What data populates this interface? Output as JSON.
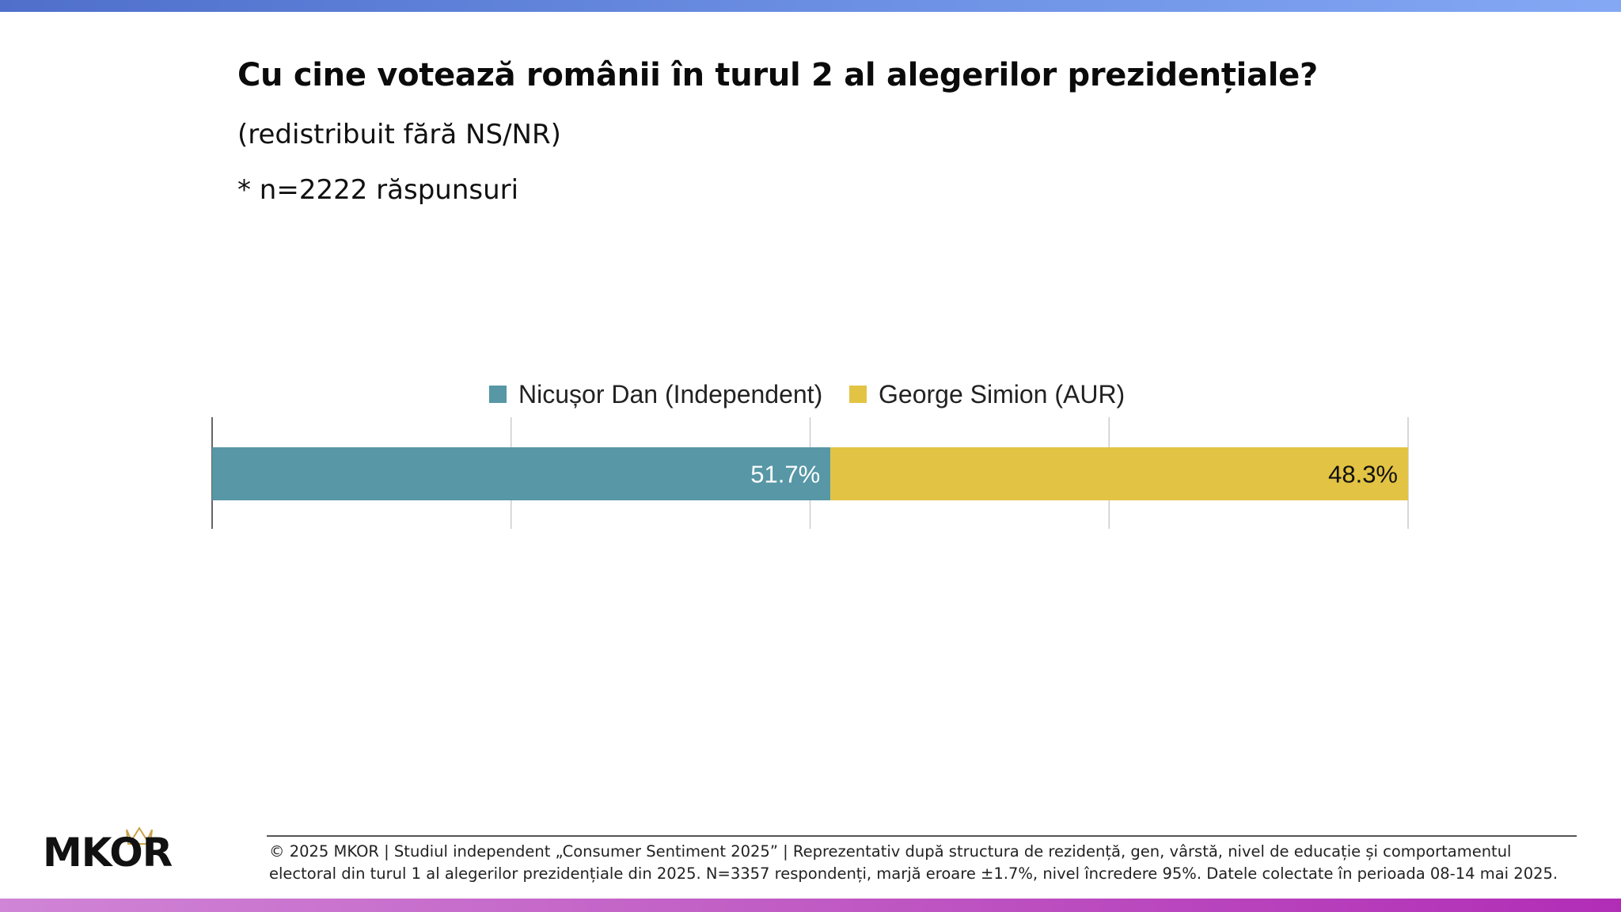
{
  "header": {
    "title": "Cu cine votează românii în turul 2 al alegerilor prezidențiale?",
    "subtitle": "(redistribuit fără NS/NR)",
    "note": "* n=2222 răspunsuri"
  },
  "chart_data": {
    "type": "bar",
    "orientation": "horizontal",
    "stacked": true,
    "categories": [
      ""
    ],
    "series": [
      {
        "name": "Nicușor Dan (Independent)",
        "values": [
          51.7
        ],
        "label": "51.7%",
        "color": "#5797a6",
        "label_color": "#ffffff"
      },
      {
        "name": "George Simion (AUR)",
        "values": [
          48.3
        ],
        "label": "48.3%",
        "color": "#e3c343",
        "label_color": "#111111"
      }
    ],
    "xlim": [
      0,
      100
    ],
    "grid": true,
    "legend": "top-center",
    "title": "",
    "xlabel": "",
    "ylabel": ""
  },
  "logo": {
    "text": "MKOR",
    "color": "#111111",
    "crown_color": "#c9a24a"
  },
  "footer": {
    "text": "© 2025 MKOR | Studiul independent „Consumer Sentiment 2025” | Reprezentativ după structura de rezidență, gen, vârstă, nivel de educație și comportamentul electoral din turul 1 al alegerilor prezidențiale din 2025. N=3357 respondenți, marjă eroare ±1.7%, nivel încredere 95%. Datele colectate în perioada 08-14 mai 2025."
  },
  "colors": {
    "top_bar": "#6a8ee2",
    "bottom_bar": "#c05bc4"
  }
}
